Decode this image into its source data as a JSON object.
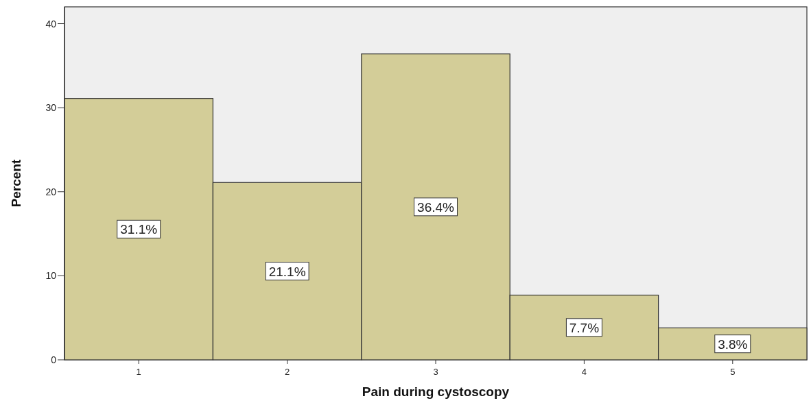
{
  "chart_data": {
    "type": "bar",
    "xlabel": "Pain during cystoscopy",
    "ylabel": "Percent",
    "categories": [
      "1",
      "2",
      "3",
      "4",
      "5"
    ],
    "values": [
      31.1,
      21.1,
      36.4,
      7.7,
      3.8
    ],
    "value_labels": [
      "31.1%",
      "21.1%",
      "36.4%",
      "7.7%",
      "3.8%"
    ],
    "color": "#d3cd98",
    "ylim": [
      0,
      42
    ],
    "yticks": [
      0,
      10,
      20,
      30,
      40
    ],
    "grid": false
  }
}
